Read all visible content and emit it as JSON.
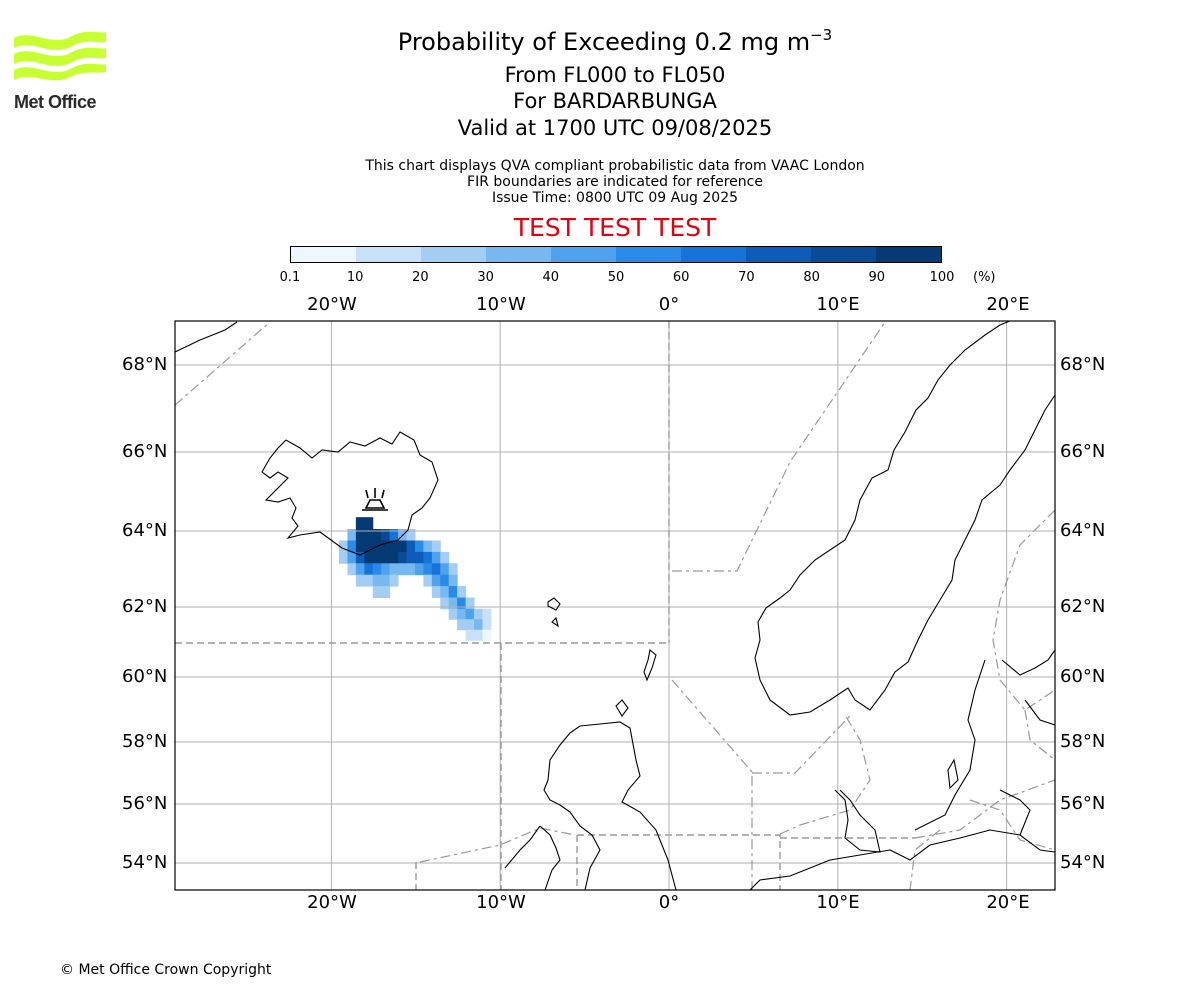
{
  "title": {
    "main": "Probability of Exceeding 0.2 mg m",
    "main_sup": "−3",
    "line2": "From FL000 to FL050",
    "line3": "For BARDARBUNGA",
    "line4": "Valid at 1700 UTC 09/08/2025"
  },
  "notes": {
    "line1": "This chart displays QVA compliant probabilistic data from VAAC London",
    "line2": "FIR boundaries are indicated for reference",
    "line3": "Issue Time: 0800 UTC 09 Aug 2025"
  },
  "test_banner": "TEST TEST TEST",
  "logo": {
    "text": "Met Office",
    "wave_color": "#c8ff32"
  },
  "colorbar": {
    "tick_labels": [
      "0.1",
      "10",
      "20",
      "30",
      "40",
      "50",
      "60",
      "70",
      "80",
      "90",
      "100"
    ],
    "unit": "(%)",
    "colors": [
      "#eef6ff",
      "#c9e1f8",
      "#a3cdf3",
      "#78b8f0",
      "#4ea2ee",
      "#2a8ae8",
      "#1673d8",
      "#0d5db8",
      "#094b96",
      "#053a74",
      "#032858"
    ]
  },
  "map": {
    "lon_labels": [
      "20°W",
      "10°W",
      "0°",
      "10°E",
      "20°E"
    ],
    "lat_labels": [
      "68°N",
      "66°N",
      "64°N",
      "62°N",
      "60°N",
      "58°N",
      "56°N",
      "54°N"
    ],
    "volcano": "BARDARBUNGA",
    "plume_cells": [
      {
        "lon": -18.3,
        "lat": 64.2,
        "p": 90
      },
      {
        "lon": -17.8,
        "lat": 64.2,
        "p": 90
      },
      {
        "lon": -18.8,
        "lat": 63.9,
        "p": 30
      },
      {
        "lon": -18.3,
        "lat": 63.9,
        "p": 100
      },
      {
        "lon": -17.8,
        "lat": 63.9,
        "p": 100
      },
      {
        "lon": -17.3,
        "lat": 63.9,
        "p": 100
      },
      {
        "lon": -16.8,
        "lat": 63.9,
        "p": 80
      },
      {
        "lon": -16.3,
        "lat": 63.9,
        "p": 60
      },
      {
        "lon": -15.8,
        "lat": 63.9,
        "p": 30
      },
      {
        "lon": -15.3,
        "lat": 63.9,
        "p": 20
      },
      {
        "lon": -19.3,
        "lat": 63.6,
        "p": 20
      },
      {
        "lon": -18.8,
        "lat": 63.6,
        "p": 50
      },
      {
        "lon": -18.3,
        "lat": 63.6,
        "p": 100
      },
      {
        "lon": -17.8,
        "lat": 63.6,
        "p": 100
      },
      {
        "lon": -17.3,
        "lat": 63.6,
        "p": 100
      },
      {
        "lon": -16.8,
        "lat": 63.6,
        "p": 100
      },
      {
        "lon": -16.3,
        "lat": 63.6,
        "p": 100
      },
      {
        "lon": -15.8,
        "lat": 63.6,
        "p": 90
      },
      {
        "lon": -15.3,
        "lat": 63.6,
        "p": 70
      },
      {
        "lon": -14.8,
        "lat": 63.6,
        "p": 50
      },
      {
        "lon": -14.3,
        "lat": 63.6,
        "p": 30
      },
      {
        "lon": -13.8,
        "lat": 63.6,
        "p": 20
      },
      {
        "lon": -19.3,
        "lat": 63.3,
        "p": 20
      },
      {
        "lon": -18.8,
        "lat": 63.3,
        "p": 40
      },
      {
        "lon": -18.3,
        "lat": 63.3,
        "p": 70
      },
      {
        "lon": -17.8,
        "lat": 63.3,
        "p": 90
      },
      {
        "lon": -17.3,
        "lat": 63.3,
        "p": 100
      },
      {
        "lon": -16.8,
        "lat": 63.3,
        "p": 100
      },
      {
        "lon": -16.3,
        "lat": 63.3,
        "p": 90
      },
      {
        "lon": -15.8,
        "lat": 63.3,
        "p": 80
      },
      {
        "lon": -15.3,
        "lat": 63.3,
        "p": 70
      },
      {
        "lon": -14.8,
        "lat": 63.3,
        "p": 70
      },
      {
        "lon": -14.3,
        "lat": 63.3,
        "p": 60
      },
      {
        "lon": -13.8,
        "lat": 63.3,
        "p": 40
      },
      {
        "lon": -13.3,
        "lat": 63.3,
        "p": 20
      },
      {
        "lon": -18.8,
        "lat": 63.0,
        "p": 20
      },
      {
        "lon": -18.3,
        "lat": 63.0,
        "p": 40
      },
      {
        "lon": -17.8,
        "lat": 63.0,
        "p": 60
      },
      {
        "lon": -17.3,
        "lat": 63.0,
        "p": 50
      },
      {
        "lon": -16.8,
        "lat": 63.0,
        "p": 40
      },
      {
        "lon": -16.3,
        "lat": 63.0,
        "p": 30
      },
      {
        "lon": -15.8,
        "lat": 63.0,
        "p": 30
      },
      {
        "lon": -15.3,
        "lat": 63.0,
        "p": 30
      },
      {
        "lon": -14.8,
        "lat": 63.0,
        "p": 40
      },
      {
        "lon": -14.3,
        "lat": 63.0,
        "p": 50
      },
      {
        "lon": -13.8,
        "lat": 63.0,
        "p": 60
      },
      {
        "lon": -13.3,
        "lat": 63.0,
        "p": 40
      },
      {
        "lon": -12.8,
        "lat": 63.0,
        "p": 20
      },
      {
        "lon": -18.3,
        "lat": 62.7,
        "p": 20
      },
      {
        "lon": -17.8,
        "lat": 62.7,
        "p": 20
      },
      {
        "lon": -17.3,
        "lat": 62.7,
        "p": 30
      },
      {
        "lon": -16.8,
        "lat": 62.7,
        "p": 30
      },
      {
        "lon": -16.3,
        "lat": 62.7,
        "p": 20
      },
      {
        "lon": -14.3,
        "lat": 62.7,
        "p": 20
      },
      {
        "lon": -13.8,
        "lat": 62.7,
        "p": 40
      },
      {
        "lon": -13.3,
        "lat": 62.7,
        "p": 50
      },
      {
        "lon": -12.8,
        "lat": 62.7,
        "p": 30
      },
      {
        "lon": -17.3,
        "lat": 62.4,
        "p": 20
      },
      {
        "lon": -16.8,
        "lat": 62.4,
        "p": 20
      },
      {
        "lon": -13.8,
        "lat": 62.4,
        "p": 20
      },
      {
        "lon": -13.3,
        "lat": 62.4,
        "p": 30
      },
      {
        "lon": -12.8,
        "lat": 62.4,
        "p": 50
      },
      {
        "lon": -12.3,
        "lat": 62.4,
        "p": 20
      },
      {
        "lon": -13.3,
        "lat": 62.1,
        "p": 20
      },
      {
        "lon": -12.8,
        "lat": 62.1,
        "p": 30
      },
      {
        "lon": -12.3,
        "lat": 62.1,
        "p": 50
      },
      {
        "lon": -11.8,
        "lat": 62.1,
        "p": 20
      },
      {
        "lon": -12.8,
        "lat": 61.8,
        "p": 20
      },
      {
        "lon": -12.3,
        "lat": 61.8,
        "p": 30
      },
      {
        "lon": -11.8,
        "lat": 61.8,
        "p": 40
      },
      {
        "lon": -11.3,
        "lat": 61.8,
        "p": 20
      },
      {
        "lon": -10.8,
        "lat": 61.8,
        "p": 10
      },
      {
        "lon": -12.3,
        "lat": 61.5,
        "p": 20
      },
      {
        "lon": -11.8,
        "lat": 61.5,
        "p": 20
      },
      {
        "lon": -11.3,
        "lat": 61.5,
        "p": 30
      },
      {
        "lon": -10.8,
        "lat": 61.5,
        "p": 10
      },
      {
        "lon": -11.8,
        "lat": 61.2,
        "p": 10
      },
      {
        "lon": -11.3,
        "lat": 61.2,
        "p": 10
      },
      {
        "lon": -10.8,
        "lat": 61.2,
        "p": 0.1
      }
    ]
  },
  "copyright": "© Met Office Crown Copyright"
}
